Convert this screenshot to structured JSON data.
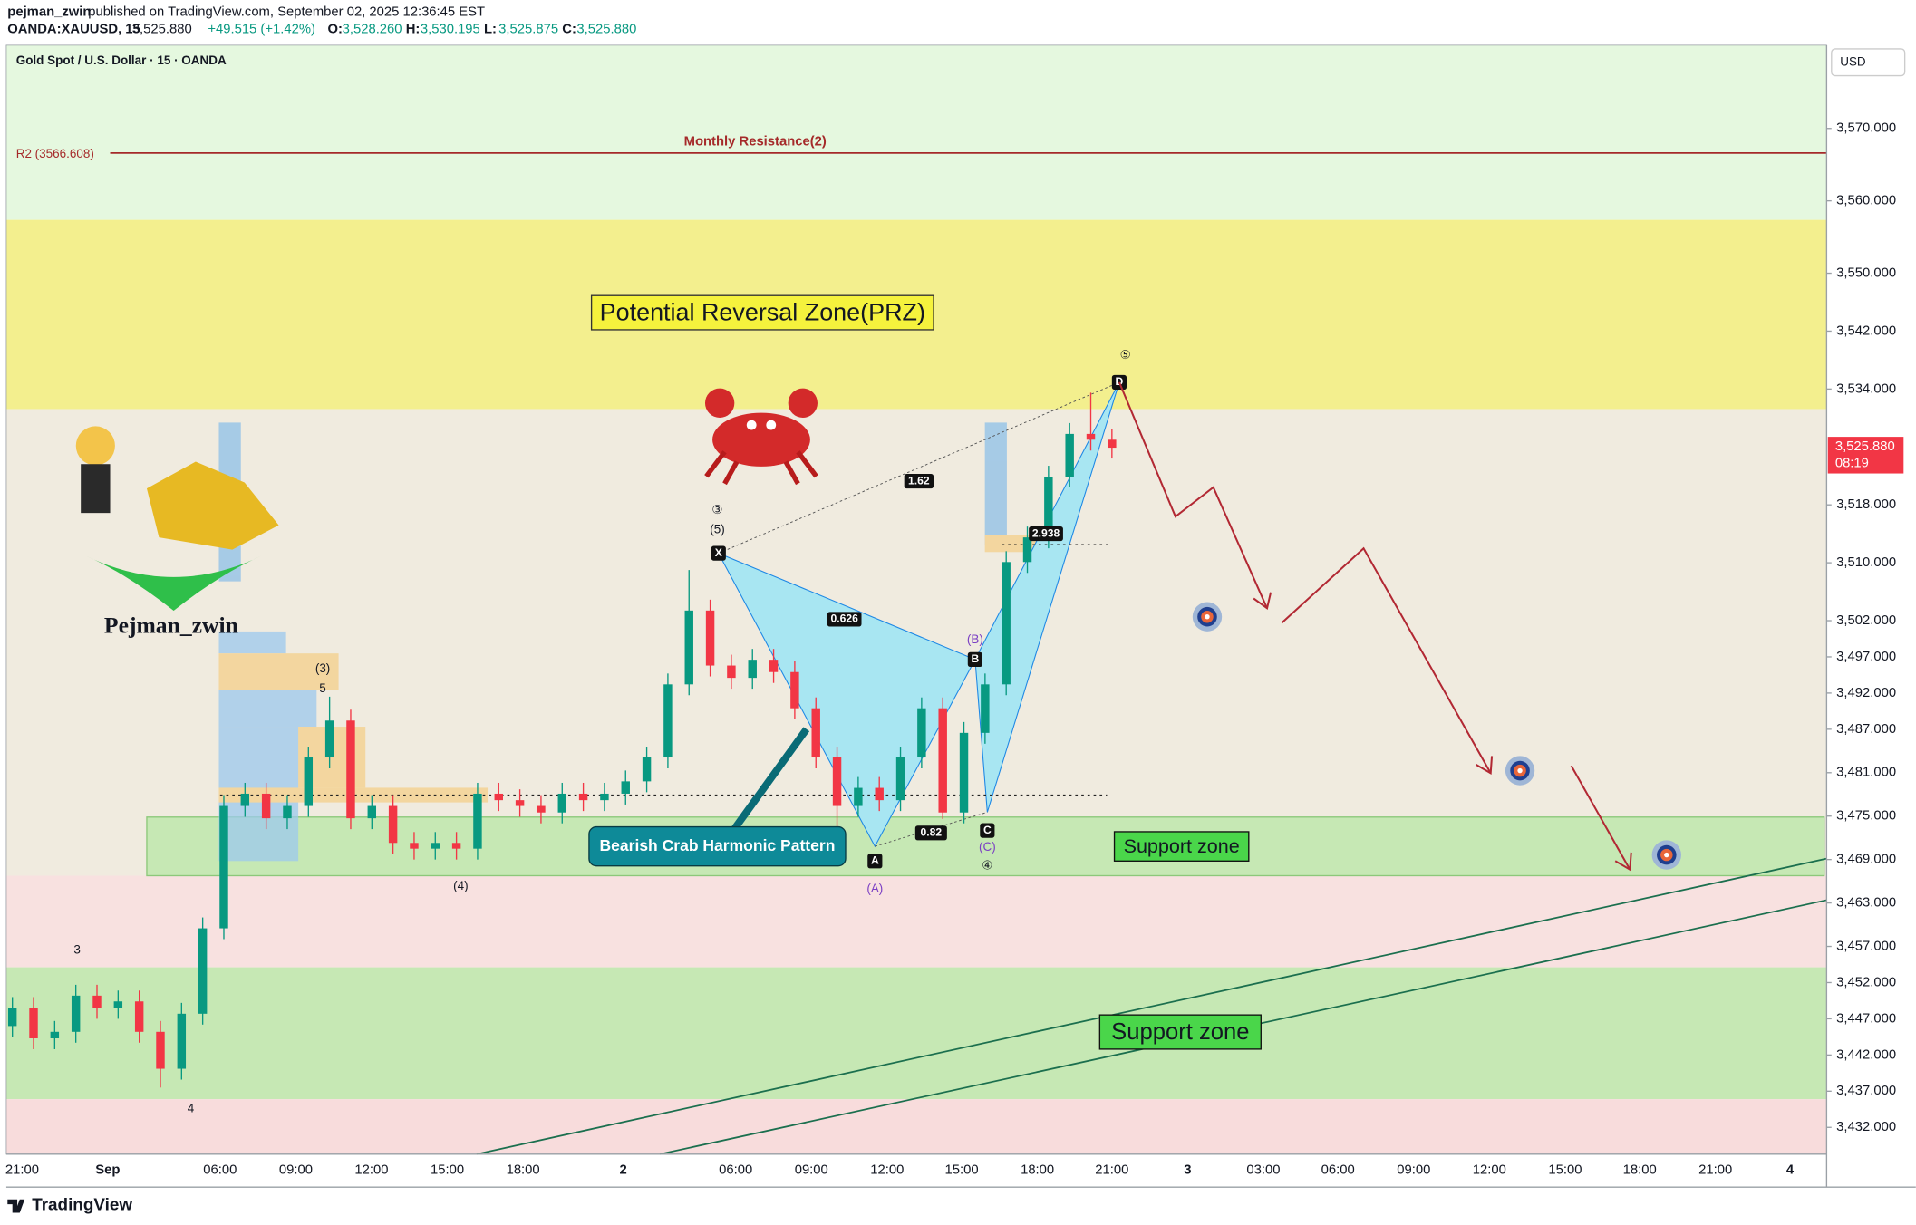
{
  "header": {
    "publisher": "pejman_zwin",
    "published": "published on TradingView.com, September 02, 2025 12:36:45 EST",
    "symbol": "OANDA:XAUUSD, 15",
    "last": "3,525.880",
    "change": "+49.515 (+1.42%)",
    "ohlc": [
      {
        "label": "O:",
        "value": "3,528.260"
      },
      {
        "label": "H:",
        "value": "3,530.195"
      },
      {
        "label": "L:",
        "value": "3,525.875"
      },
      {
        "label": "C:",
        "value": "3,525.880"
      }
    ]
  },
  "chart": {
    "title": "Gold Spot / U.S. Dollar · 15 · OANDA",
    "currency": "USD",
    "ylim": [
      3428.3,
      3581.5
    ],
    "yticks": [
      {
        "value": 3570,
        "label": "3,570.000"
      },
      {
        "value": 3560,
        "label": "3,560.000"
      },
      {
        "value": 3550,
        "label": "3,550.000"
      },
      {
        "value": 3542,
        "label": "3,542.000"
      },
      {
        "value": 3534,
        "label": "3,534.000"
      },
      {
        "value": 3518,
        "label": "3,518.000"
      },
      {
        "value": 3510,
        "label": "3,510.000"
      },
      {
        "value": 3502,
        "label": "3,502.000"
      },
      {
        "value": 3497,
        "label": "3,497.000"
      },
      {
        "value": 3492,
        "label": "3,492.000"
      },
      {
        "value": 3487,
        "label": "3,487.000"
      },
      {
        "value": 3481,
        "label": "3,481.000"
      },
      {
        "value": 3475,
        "label": "3,475.000"
      },
      {
        "value": 3469,
        "label": "3,469.000"
      },
      {
        "value": 3463,
        "label": "3,463.000"
      },
      {
        "value": 3457,
        "label": "3,457.000"
      },
      {
        "value": 3452,
        "label": "3,452.000"
      },
      {
        "value": 3447,
        "label": "3,447.000"
      },
      {
        "value": 3442,
        "label": "3,442.000"
      },
      {
        "value": 3437,
        "label": "3,437.000"
      },
      {
        "value": 3432,
        "label": "3,432.000"
      }
    ],
    "last_price": {
      "value": 3525.88,
      "label": "3,525.880"
    },
    "countdown": "08:19",
    "time_labels": [
      "21:00",
      "Sep",
      "06:00",
      "09:00",
      "12:00",
      "15:00",
      "18:00",
      "2",
      "06:00",
      "09:00",
      "12:00",
      "15:00",
      "18:00",
      "21:00",
      "3",
      "03:00",
      "06:00",
      "09:00",
      "12:00",
      "15:00",
      "18:00",
      "21:00",
      "4"
    ],
    "candles": {
      "open": [
        3446.0,
        3448.5,
        3444.3,
        3445.2,
        3450.2,
        3448.5,
        3449.4,
        3445.2,
        3440.1,
        3447.7,
        3459.5,
        3476.4,
        3478.1,
        3474.7,
        3476.4,
        3483.1,
        3488.2,
        3474.7,
        3476.4,
        3471.3,
        3470.5,
        3471.3,
        3470.5,
        3478.1,
        3477.2,
        3476.4,
        3475.5,
        3478.1,
        3477.2,
        3478.1,
        3479.8,
        3483.1,
        3493.2,
        3503.4,
        3495.8,
        3494.1,
        3496.6,
        3494.9,
        3489.9,
        3483.1,
        3476.4,
        3478.9,
        3477.2,
        3483.1,
        3489.9,
        3475.5,
        3486.5,
        3493.2,
        3510.1,
        3513.5,
        3521.9,
        3527.8,
        3527.0
      ],
      "high": [
        3450.0,
        3450.0,
        3446.7,
        3451.7,
        3451.7,
        3450.9,
        3450.9,
        3446.7,
        3449.2,
        3461.0,
        3477.9,
        3479.6,
        3479.6,
        3477.9,
        3484.6,
        3491.5,
        3489.7,
        3477.9,
        3477.9,
        3472.8,
        3472.8,
        3472.8,
        3479.6,
        3479.6,
        3478.7,
        3477.9,
        3479.6,
        3479.6,
        3479.6,
        3481.3,
        3484.6,
        3494.7,
        3509.0,
        3504.9,
        3497.3,
        3498.1,
        3498.1,
        3496.4,
        3491.4,
        3484.6,
        3480.4,
        3480.4,
        3484.6,
        3491.4,
        3491.4,
        3488.0,
        3494.7,
        3511.6,
        3515.0,
        3523.4,
        3529.3,
        3533.5,
        3528.5
      ],
      "low": [
        3444.5,
        3442.8,
        3442.8,
        3443.7,
        3447.0,
        3447.0,
        3443.7,
        3437.5,
        3438.6,
        3446.2,
        3458.0,
        3474.9,
        3473.2,
        3473.2,
        3474.9,
        3481.6,
        3473.2,
        3473.2,
        3469.8,
        3469.0,
        3469.0,
        3469.0,
        3469.0,
        3475.7,
        3474.9,
        3474.0,
        3474.0,
        3475.7,
        3475.7,
        3476.6,
        3478.3,
        3481.6,
        3491.7,
        3494.3,
        3492.6,
        3492.6,
        3493.4,
        3488.4,
        3481.6,
        3470.8,
        3474.9,
        3475.7,
        3475.7,
        3481.6,
        3474.6,
        3474.0,
        3485.0,
        3491.7,
        3508.6,
        3512.0,
        3520.4,
        3525.5,
        3524.4
      ],
      "close": [
        3448.5,
        3444.3,
        3445.2,
        3450.2,
        3448.5,
        3449.4,
        3445.2,
        3440.1,
        3447.7,
        3459.5,
        3476.4,
        3478.1,
        3474.7,
        3476.4,
        3483.1,
        3488.2,
        3474.7,
        3476.4,
        3471.3,
        3470.5,
        3471.3,
        3470.5,
        3478.1,
        3477.2,
        3476.4,
        3475.5,
        3478.1,
        3477.2,
        3478.1,
        3479.8,
        3483.1,
        3493.2,
        3503.4,
        3495.8,
        3494.1,
        3496.6,
        3494.9,
        3489.9,
        3483.1,
        3476.4,
        3478.9,
        3477.2,
        3483.1,
        3489.9,
        3475.5,
        3486.5,
        3493.2,
        3510.1,
        3513.5,
        3521.9,
        3527.8,
        3527.0,
        3525.9
      ]
    },
    "r2": {
      "value": 3566.608,
      "label": "R2 (3566.608)"
    },
    "r2_name": "Monthly Resistance(2)",
    "prz_label": "Potential Reversal Zone(PRZ)",
    "pattern_label": "Bearish Crab Harmonic Pattern",
    "support_labels": [
      "Support zone",
      "Support zone"
    ],
    "points": [
      "X",
      "A",
      "B",
      "C",
      "D"
    ],
    "ratios": [
      "1.62",
      "0.626",
      "0.82",
      "2.938"
    ],
    "waves": [
      "③",
      "(5)",
      "(3)",
      "5",
      "3",
      "4",
      "(4)",
      "(A)",
      "(B)",
      "(C)",
      "④",
      "⑤"
    ],
    "author": "Pejman_zwin"
  },
  "footer": {
    "brand": "TradingView"
  }
}
